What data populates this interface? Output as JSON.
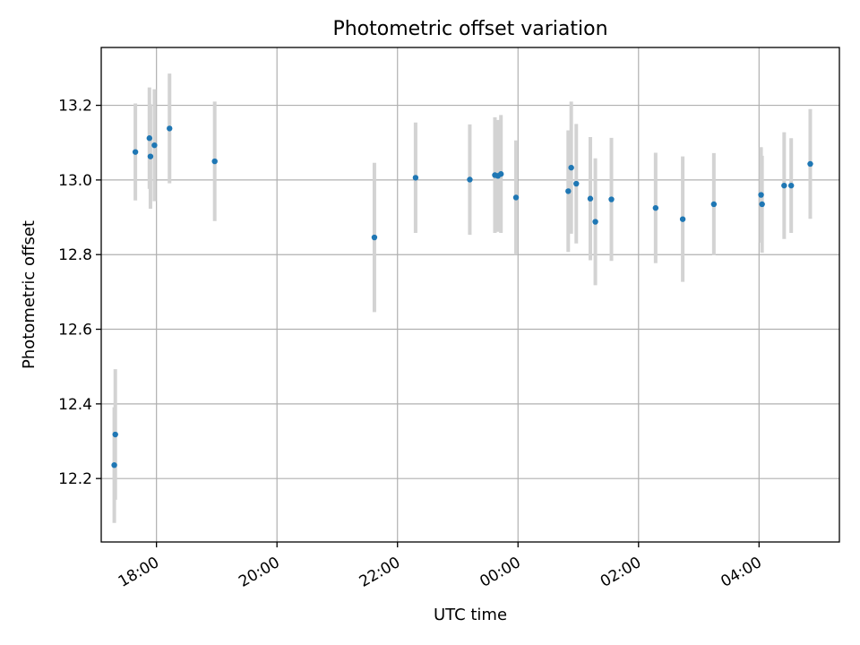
{
  "chart_data": {
    "type": "scatter",
    "title": "Photometric offset variation",
    "xlabel": "UTC time",
    "ylabel": "Photometric offset",
    "x_unit": "UTC time",
    "xlim": [
      "17:05",
      "05:20"
    ],
    "ylim": [
      12.03,
      13.355
    ],
    "grid": true,
    "x_ticks": [
      "18:00",
      "20:00",
      "22:00",
      "00:00",
      "02:00",
      "04:00"
    ],
    "y_ticks": [
      "12.2",
      "12.4",
      "12.6",
      "12.8",
      "13.0",
      "13.2"
    ],
    "colors": {
      "point": "#1f77b4",
      "errorbar": "#d3d3d3"
    },
    "points": [
      {
        "x": "17:18",
        "y": 12.236,
        "err": 0.155
      },
      {
        "x": "17:19",
        "y": 12.318,
        "err": 0.175
      },
      {
        "x": "17:39",
        "y": 13.075,
        "err": 0.13
      },
      {
        "x": "17:54",
        "y": 13.063,
        "err": 0.14
      },
      {
        "x": "17:53",
        "y": 13.112,
        "err": 0.136
      },
      {
        "x": "17:58",
        "y": 13.093,
        "err": 0.15
      },
      {
        "x": "18:13",
        "y": 13.138,
        "err": 0.147
      },
      {
        "x": "18:58",
        "y": 13.05,
        "err": 0.16
      },
      {
        "x": "21:37",
        "y": 12.846,
        "err": 0.2
      },
      {
        "x": "22:18",
        "y": 13.006,
        "err": 0.148
      },
      {
        "x": "23:12",
        "y": 13.001,
        "err": 0.148
      },
      {
        "x": "23:37",
        "y": 13.013,
        "err": 0.155
      },
      {
        "x": "23:40",
        "y": 13.011,
        "err": 0.15
      },
      {
        "x": "23:43",
        "y": 13.016,
        "err": 0.158
      },
      {
        "x": "23:58",
        "y": 12.953,
        "err": 0.153
      },
      {
        "x": "00:50",
        "y": 12.97,
        "err": 0.163
      },
      {
        "x": "00:53",
        "y": 13.033,
        "err": 0.177
      },
      {
        "x": "00:58",
        "y": 12.99,
        "err": 0.16
      },
      {
        "x": "01:12",
        "y": 12.95,
        "err": 0.165
      },
      {
        "x": "01:17",
        "y": 12.888,
        "err": 0.17
      },
      {
        "x": "01:33",
        "y": 12.948,
        "err": 0.165
      },
      {
        "x": "02:17",
        "y": 12.925,
        "err": 0.148
      },
      {
        "x": "02:44",
        "y": 12.895,
        "err": 0.168
      },
      {
        "x": "03:15",
        "y": 12.935,
        "err": 0.137
      },
      {
        "x": "04:02",
        "y": 12.96,
        "err": 0.128
      },
      {
        "x": "04:03",
        "y": 12.935,
        "err": 0.13
      },
      {
        "x": "04:25",
        "y": 12.985,
        "err": 0.143
      },
      {
        "x": "04:32",
        "y": 12.985,
        "err": 0.127
      },
      {
        "x": "04:51",
        "y": 13.043,
        "err": 0.147
      }
    ]
  }
}
